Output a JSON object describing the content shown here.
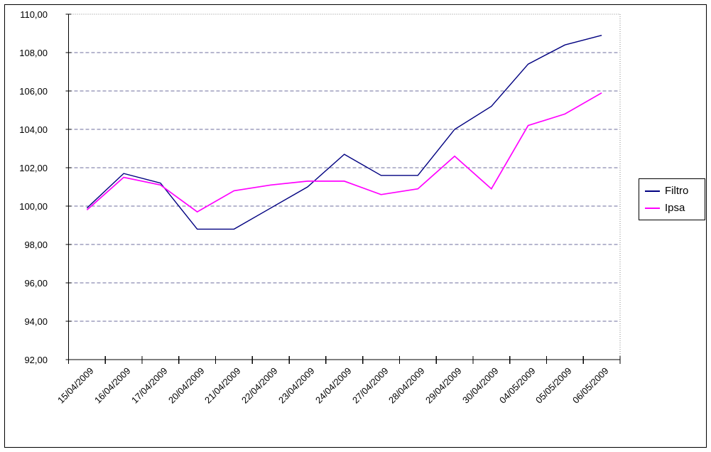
{
  "chart_data": {
    "type": "line",
    "title": "",
    "xlabel": "",
    "ylabel": "",
    "categories": [
      "15/04/2009",
      "16/04/2009",
      "17/04/2009",
      "20/04/2009",
      "21/04/2009",
      "22/04/2009",
      "23/04/2009",
      "24/04/2009",
      "27/04/2009",
      "28/04/2009",
      "29/04/2009",
      "30/04/2009",
      "04/05/2009",
      "05/05/2009",
      "06/05/2009"
    ],
    "series": [
      {
        "name": "Filtro",
        "color": "#000080",
        "values": [
          99.9,
          101.7,
          101.2,
          98.8,
          98.8,
          99.9,
          101.0,
          102.7,
          101.6,
          101.6,
          104.0,
          105.2,
          107.4,
          108.4,
          108.9
        ]
      },
      {
        "name": "Ipsa",
        "color": "#ff00ff",
        "values": [
          99.8,
          101.5,
          101.1,
          99.7,
          100.8,
          101.1,
          101.3,
          101.3,
          100.6,
          100.9,
          102.6,
          100.9,
          104.2,
          104.8,
          105.9
        ]
      }
    ],
    "ylim": [
      92,
      110
    ],
    "ytick_step": 2,
    "ytick_labels": [
      "92,00",
      "94,00",
      "96,00",
      "98,00",
      "100,00",
      "102,00",
      "104,00",
      "106,00",
      "108,00",
      "110,00"
    ],
    "grid": "horizontal-dashed",
    "legend_position": "right"
  },
  "colors": {
    "filtro": "#000080",
    "ipsa": "#ff00ff",
    "gridline": "#6e6e9e",
    "plot_boundary": "#8a8a8a",
    "axis": "#000000",
    "background": "#ffffff"
  }
}
